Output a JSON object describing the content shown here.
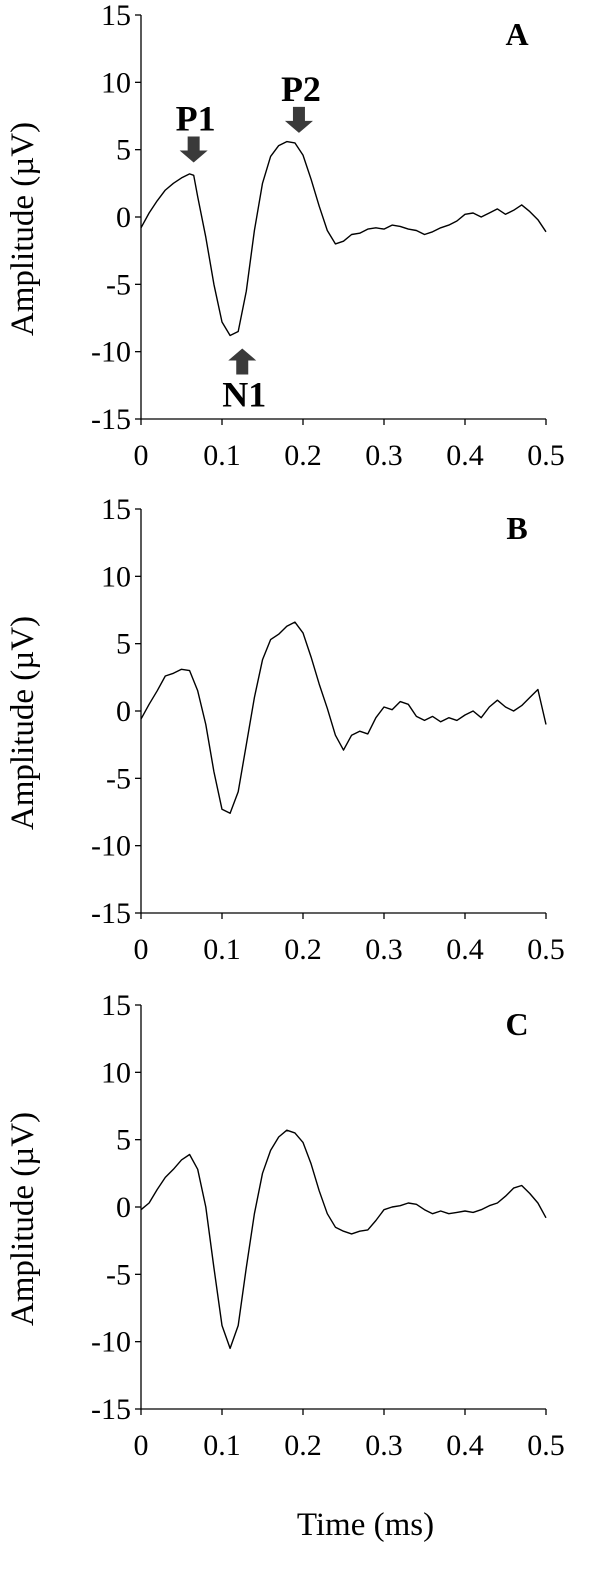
{
  "chart_data": [
    {
      "type": "line",
      "panel_label": "A",
      "ylabel": "Amplitude (µV)",
      "xlabel": "",
      "xlim": [
        0,
        0.5
      ],
      "ylim": [
        -15,
        15
      ],
      "xticks": [
        "0",
        "0.1",
        "0.2",
        "0.3",
        "0.4",
        "0.5"
      ],
      "yticks": [
        "15",
        "10",
        "5",
        "0",
        "-5",
        "-10",
        "-15"
      ],
      "grid": false,
      "annotations": [
        {
          "text": "P1",
          "x": 0.065,
          "y": 3.3,
          "arrow": "down"
        },
        {
          "text": "P2",
          "x": 0.195,
          "y": 5.5,
          "arrow": "down"
        },
        {
          "text": "N1",
          "x": 0.125,
          "y": -8.8,
          "arrow": "up"
        }
      ],
      "series": [
        {
          "x": [
            0,
            0.01,
            0.02,
            0.03,
            0.04,
            0.05,
            0.06,
            0.065,
            0.07,
            0.08,
            0.09,
            0.1,
            0.11,
            0.12,
            0.13,
            0.14,
            0.15,
            0.16,
            0.17,
            0.18,
            0.19,
            0.2,
            0.21,
            0.22,
            0.23,
            0.24,
            0.25,
            0.26,
            0.27,
            0.28,
            0.29,
            0.3,
            0.31,
            0.32,
            0.33,
            0.34,
            0.35,
            0.36,
            0.37,
            0.38,
            0.39,
            0.4,
            0.41,
            0.42,
            0.43,
            0.44,
            0.45,
            0.46,
            0.47,
            0.48,
            0.49,
            0.5
          ],
          "values": [
            -0.8,
            0.3,
            1.2,
            2.0,
            2.5,
            2.9,
            3.2,
            3.1,
            1.5,
            -1.5,
            -5.0,
            -7.8,
            -8.8,
            -8.5,
            -5.5,
            -1.0,
            2.5,
            4.5,
            5.3,
            5.6,
            5.5,
            4.6,
            2.8,
            0.8,
            -1.0,
            -2.0,
            -1.8,
            -1.3,
            -1.2,
            -0.9,
            -0.8,
            -0.9,
            -0.6,
            -0.7,
            -0.9,
            -1.0,
            -1.3,
            -1.1,
            -0.8,
            -0.6,
            -0.3,
            0.2,
            0.3,
            0.0,
            0.3,
            0.6,
            0.2,
            0.5,
            0.9,
            0.4,
            -0.2,
            -1.1
          ]
        }
      ]
    },
    {
      "type": "line",
      "panel_label": "B",
      "ylabel": "Amplitude (µV)",
      "xlabel": "",
      "xlim": [
        0,
        0.5
      ],
      "ylim": [
        -15,
        15
      ],
      "xticks": [
        "0",
        "0.1",
        "0.2",
        "0.3",
        "0.4",
        "0.5"
      ],
      "yticks": [
        "15",
        "10",
        "5",
        "0",
        "-5",
        "-10",
        "-15"
      ],
      "grid": false,
      "series": [
        {
          "x": [
            0,
            0.01,
            0.02,
            0.03,
            0.04,
            0.05,
            0.06,
            0.07,
            0.08,
            0.09,
            0.1,
            0.11,
            0.12,
            0.13,
            0.14,
            0.15,
            0.16,
            0.17,
            0.18,
            0.19,
            0.2,
            0.21,
            0.22,
            0.23,
            0.24,
            0.25,
            0.26,
            0.27,
            0.28,
            0.29,
            0.3,
            0.31,
            0.32,
            0.33,
            0.34,
            0.35,
            0.36,
            0.37,
            0.38,
            0.39,
            0.4,
            0.41,
            0.42,
            0.43,
            0.44,
            0.45,
            0.46,
            0.47,
            0.48,
            0.49,
            0.5
          ],
          "values": [
            -0.6,
            0.5,
            1.5,
            2.6,
            2.8,
            3.1,
            3.0,
            1.5,
            -1.0,
            -4.5,
            -7.3,
            -7.6,
            -6.0,
            -2.5,
            1.0,
            3.8,
            5.3,
            5.7,
            6.3,
            6.6,
            5.8,
            4.0,
            2.0,
            0.2,
            -1.8,
            -2.9,
            -1.8,
            -1.5,
            -1.7,
            -0.5,
            0.3,
            0.1,
            0.7,
            0.5,
            -0.4,
            -0.7,
            -0.4,
            -0.8,
            -0.5,
            -0.7,
            -0.3,
            0.0,
            -0.5,
            0.3,
            0.8,
            0.3,
            0.0,
            0.4,
            1.0,
            1.6,
            -1.0
          ]
        }
      ]
    },
    {
      "type": "line",
      "panel_label": "C",
      "ylabel": "Amplitude (µV)",
      "xlabel": "Time (ms)",
      "xlim": [
        0,
        0.5
      ],
      "ylim": [
        -15,
        15
      ],
      "xticks": [
        "0",
        "0.1",
        "0.2",
        "0.3",
        "0.4",
        "0.5"
      ],
      "yticks": [
        "15",
        "10",
        "5",
        "0",
        "-5",
        "-10",
        "-15"
      ],
      "grid": false,
      "series": [
        {
          "x": [
            0,
            0.01,
            0.02,
            0.03,
            0.04,
            0.05,
            0.06,
            0.07,
            0.08,
            0.09,
            0.1,
            0.11,
            0.12,
            0.13,
            0.14,
            0.15,
            0.16,
            0.17,
            0.18,
            0.19,
            0.2,
            0.21,
            0.22,
            0.23,
            0.24,
            0.25,
            0.26,
            0.27,
            0.28,
            0.29,
            0.3,
            0.31,
            0.32,
            0.33,
            0.34,
            0.35,
            0.36,
            0.37,
            0.38,
            0.39,
            0.4,
            0.41,
            0.42,
            0.43,
            0.44,
            0.45,
            0.46,
            0.47,
            0.48,
            0.49,
            0.5
          ],
          "values": [
            -0.2,
            0.3,
            1.3,
            2.2,
            2.8,
            3.5,
            3.9,
            2.8,
            0.0,
            -4.5,
            -8.8,
            -10.5,
            -8.8,
            -4.5,
            -0.5,
            2.5,
            4.2,
            5.2,
            5.7,
            5.5,
            4.8,
            3.2,
            1.2,
            -0.5,
            -1.5,
            -1.8,
            -2.0,
            -1.8,
            -1.7,
            -1.0,
            -0.2,
            0.0,
            0.1,
            0.3,
            0.2,
            -0.2,
            -0.5,
            -0.3,
            -0.5,
            -0.4,
            -0.3,
            -0.4,
            -0.2,
            0.1,
            0.3,
            0.8,
            1.4,
            1.6,
            1.0,
            0.3,
            -0.8
          ]
        }
      ]
    }
  ]
}
